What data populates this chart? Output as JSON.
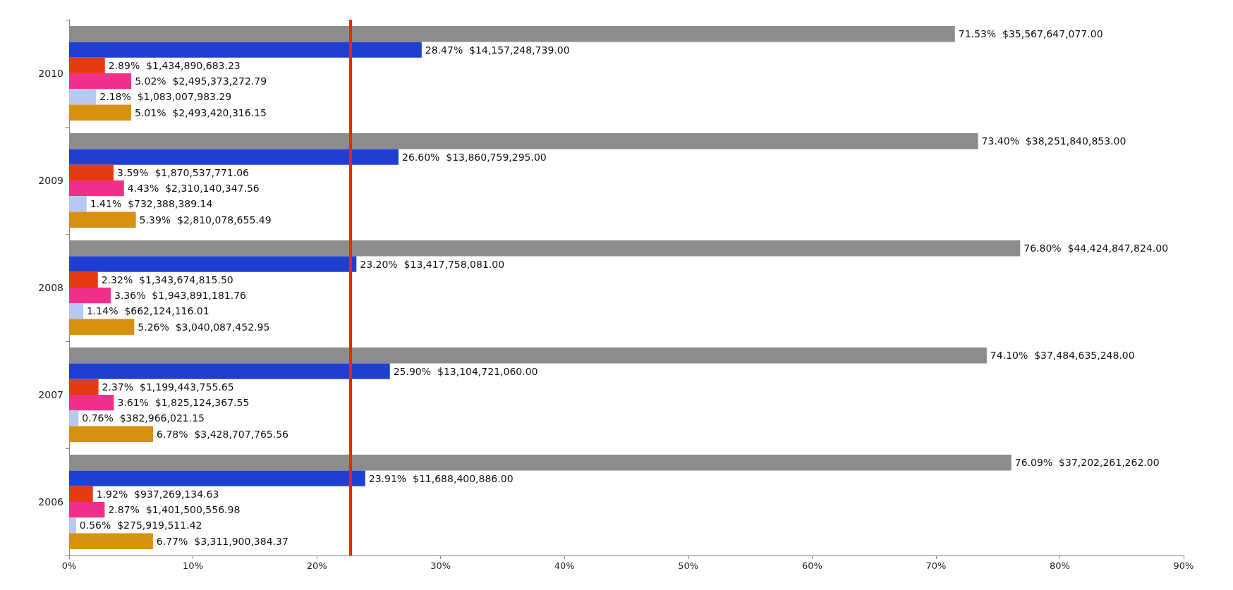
{
  "chart_data": {
    "type": "bar",
    "orientation": "horizontal",
    "categories": [
      "2010",
      "2009",
      "2008",
      "2007",
      "2006"
    ],
    "series": [
      {
        "color": "#8c8c8c",
        "values": [
          71.53,
          73.4,
          76.8,
          74.1,
          76.09
        ],
        "value_labels": [
          "71.53%  $35,567,647,077.00",
          "73.40%  $38,251,840,853.00",
          "76.80%  $44,424,847,824.00",
          "74.10%  $37,484,635,248.00",
          "76.09%  $37,202,261,262.00"
        ]
      },
      {
        "color": "#1f3fd0",
        "values": [
          28.47,
          26.6,
          23.2,
          25.9,
          23.91
        ],
        "value_labels": [
          "28.47%  $14,157,248,739.00",
          "26.60%  $13,860,759,295.00",
          "23.20%  $13,417,758,081.00",
          "25.90%  $13,104,721,060.00",
          "23.91%  $11,688,400,886.00"
        ]
      },
      {
        "color": "#e83a10",
        "values": [
          2.89,
          3.59,
          2.32,
          2.37,
          1.92
        ],
        "value_labels": [
          "2.89%  $1,434,890,683.23",
          "3.59%  $1,870,537,771.06",
          "2.32%  $1,343,674,815.50",
          "2.37%  $1,199,443,755.65",
          "1.92%  $937,269,134.63"
        ]
      },
      {
        "color": "#f0308a",
        "values": [
          5.02,
          4.43,
          3.36,
          3.61,
          2.87
        ],
        "value_labels": [
          "5.02%  $2,495,373,272.79",
          "4.43%  $2,310,140,347.56",
          "3.36%  $1,943,891,181.76",
          "3.61%  $1,825,124,367.55",
          "2.87%  $1,401,500,556.98"
        ]
      },
      {
        "color": "#b8c8f0",
        "values": [
          2.18,
          1.41,
          1.14,
          0.76,
          0.56
        ],
        "value_labels": [
          "2.18%  $1,083,007,983.29",
          "1.41%  $732,388,389.14",
          "1.14%  $662,124,116.01",
          "0.76%  $382,966,021.15",
          "0.56%  $275,919,511.42"
        ]
      },
      {
        "color": "#d89010",
        "values": [
          5.01,
          5.39,
          5.26,
          6.78,
          6.77
        ],
        "value_labels": [
          "5.01%  $2,493,420,316.15",
          "5.39%  $2,810,078,655.49",
          "5.26%  $3,040,087,452.95",
          "6.78%  $3,428,707,765.56",
          "6.77%  $3,311,900,384.37"
        ]
      }
    ],
    "xlim": [
      0,
      90
    ],
    "xticks": [
      {
        "value": 0,
        "label": "0%"
      },
      {
        "value": 10,
        "label": "10%"
      },
      {
        "value": 20,
        "label": "20%"
      },
      {
        "value": 30,
        "label": "30%"
      },
      {
        "value": 40,
        "label": "40%"
      },
      {
        "value": 50,
        "label": "50%"
      },
      {
        "value": 60,
        "label": "60%"
      },
      {
        "value": 70,
        "label": "70%"
      },
      {
        "value": 80,
        "label": "80%"
      },
      {
        "value": 90,
        "label": "90%"
      }
    ],
    "ref_lines": [
      {
        "axis": "x",
        "value": 22.7,
        "color": "#ff2000"
      }
    ],
    "grid": false
  }
}
